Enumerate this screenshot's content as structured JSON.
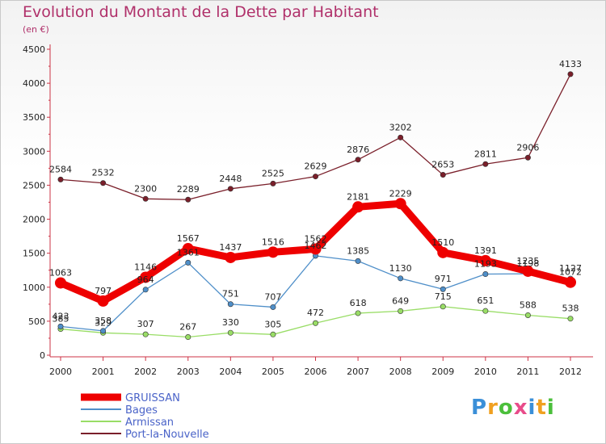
{
  "chart_data": {
    "type": "line",
    "title": "Evolution du Montant de la Dette par Habitant",
    "subtitle": "(en €)",
    "x": [
      "2000",
      "2001",
      "2002",
      "2003",
      "2004",
      "2005",
      "2006",
      "2007",
      "2008",
      "2009",
      "2010",
      "2011",
      "2012"
    ],
    "ylim": [
      0,
      4500
    ],
    "yticks": [
      0,
      500,
      1000,
      1500,
      2000,
      2500,
      3000,
      3500,
      4000,
      4500
    ],
    "grid": false,
    "legend_position": "bottom-left",
    "series": [
      {
        "name": "GRUISSAN",
        "color": "#ee0000",
        "emphasis": true,
        "values": [
          1063,
          797,
          1146,
          1567,
          1437,
          1516,
          1562,
          2181,
          2229,
          1510,
          1391,
          1235,
          1072
        ]
      },
      {
        "name": "Bages",
        "color": "#4f8fc9",
        "values": [
          423,
          358,
          964,
          1361,
          751,
          707,
          1462,
          1385,
          1130,
          971,
          1193,
          1198,
          1127
        ]
      },
      {
        "name": "Armissan",
        "color": "#99dd66",
        "values": [
          385,
          329,
          307,
          267,
          330,
          305,
          472,
          618,
          649,
          715,
          651,
          588,
          538
        ]
      },
      {
        "name": "Port-la-Nouvelle",
        "color": "#7a1f2a",
        "values": [
          2584,
          2532,
          2300,
          2289,
          2448,
          2525,
          2629,
          2876,
          3202,
          2653,
          2811,
          2906,
          4133
        ]
      }
    ]
  },
  "logo": {
    "text": "Proxiti",
    "colors": [
      "#3a8fd8",
      "#f0a020",
      "#4bbf3b",
      "#e84c8a",
      "#3a8fd8",
      "#f0a020",
      "#4bbf3b"
    ]
  }
}
